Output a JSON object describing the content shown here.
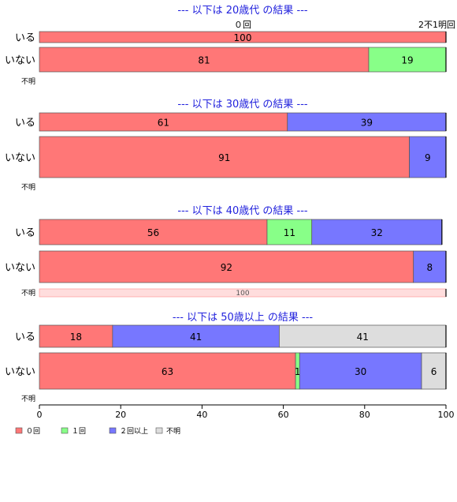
{
  "chart_data": {
    "type": "bar",
    "orientation": "horizontal",
    "stacked": true,
    "xlim": [
      0,
      100
    ],
    "x_ticks": [
      "0",
      "20",
      "40",
      "60",
      "80",
      "100"
    ],
    "legend": [
      {
        "name": "０回",
        "color": "#FF7777"
      },
      {
        "name": "１回",
        "color": "#88FF88"
      },
      {
        "name": "２回以上",
        "color": "#7777FF"
      },
      {
        "name": "不明",
        "color": "#DDDDDD"
      }
    ],
    "top_stray_labels": {
      "center": "０回",
      "right": "2不1明回"
    },
    "panels": [
      {
        "title": "--- 以下は 20歳代 の結果 ---",
        "rows": [
          {
            "label": "いる",
            "segments": [
              {
                "cat": 0,
                "value": 100,
                "label": "100"
              }
            ]
          },
          {
            "label": "いない",
            "segments": [
              {
                "cat": 0,
                "value": 81,
                "label": "81"
              },
              {
                "cat": 1,
                "value": 19,
                "label": "19"
              }
            ]
          },
          {
            "label": "不明",
            "segments": []
          }
        ]
      },
      {
        "title": "--- 以下は 30歳代 の結果 ---",
        "rows": [
          {
            "label": "いる",
            "segments": [
              {
                "cat": 0,
                "value": 61,
                "label": "61"
              },
              {
                "cat": 2,
                "value": 39,
                "label": "39"
              }
            ]
          },
          {
            "label": "いない",
            "segments": [
              {
                "cat": 0,
                "value": 91,
                "label": "91"
              },
              {
                "cat": 2,
                "value": 9,
                "label": "9"
              }
            ]
          },
          {
            "label": "不明",
            "segments": []
          }
        ]
      },
      {
        "title": "--- 以下は 40歳代 の結果 ---",
        "rows": [
          {
            "label": "いる",
            "segments": [
              {
                "cat": 0,
                "value": 56,
                "label": "56"
              },
              {
                "cat": 1,
                "value": 11,
                "label": "11"
              },
              {
                "cat": 2,
                "value": 32,
                "label": "32"
              }
            ]
          },
          {
            "label": "いない",
            "segments": [
              {
                "cat": 0,
                "value": 92,
                "label": "92"
              },
              {
                "cat": 2,
                "value": 8,
                "label": "8"
              }
            ]
          },
          {
            "label": "不明",
            "segments": [
              {
                "cat": 0,
                "value": 100,
                "label": "100",
                "faded": true
              }
            ]
          }
        ]
      },
      {
        "title": "--- 以下は 50歳以上 の結果 ---",
        "rows": [
          {
            "label": "いる",
            "segments": [
              {
                "cat": 0,
                "value": 18,
                "label": "18"
              },
              {
                "cat": 2,
                "value": 41,
                "label": "41"
              },
              {
                "cat": 3,
                "value": 41,
                "label": "41"
              }
            ]
          },
          {
            "label": "いない",
            "segments": [
              {
                "cat": 0,
                "value": 63,
                "label": "63"
              },
              {
                "cat": 1,
                "value": 1,
                "label": "1"
              },
              {
                "cat": 2,
                "value": 30,
                "label": "30"
              },
              {
                "cat": 3,
                "value": 6,
                "label": "6"
              }
            ]
          },
          {
            "label": "不明",
            "segments": []
          }
        ]
      }
    ]
  }
}
